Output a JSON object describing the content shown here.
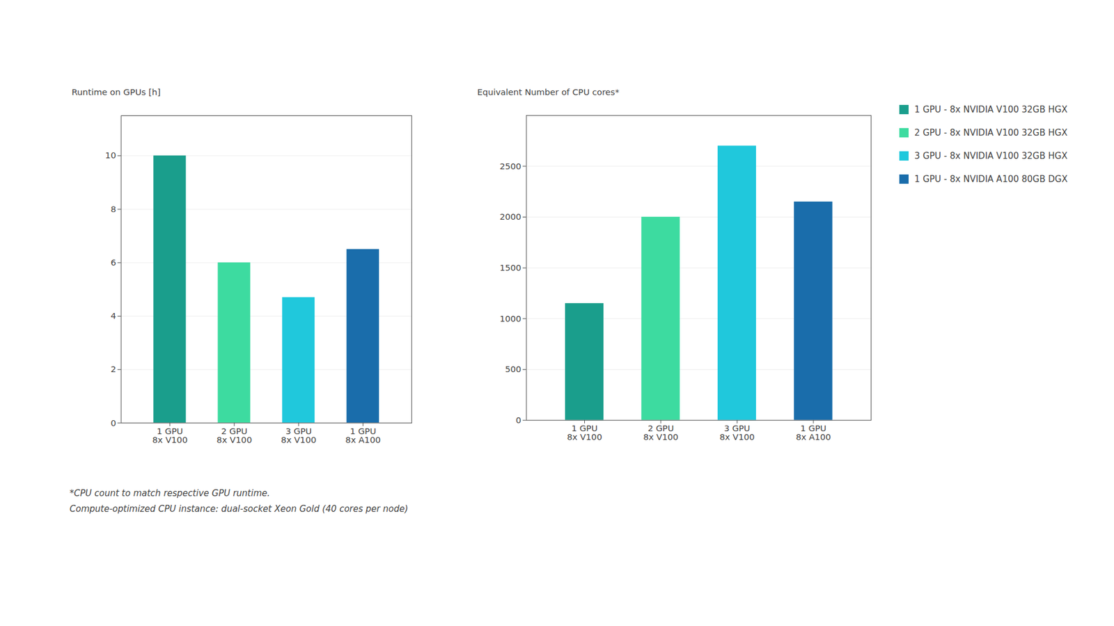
{
  "chart_data": [
    {
      "type": "bar",
      "categories": [
        "1 GPU\n8x V100",
        "2 GPU\n8x V100",
        "3 GPU\n8x V100",
        "1 GPU\n8x A100"
      ],
      "values": [
        10.0,
        6.0,
        4.7,
        6.5
      ],
      "colors": [
        "#1a9e8c",
        "#3ddba0",
        "#20c8dc",
        "#1a6dab"
      ],
      "ylabel": "Runtime on GPUs [h]",
      "ylim": [
        0,
        11.5
      ],
      "yticks": [
        0,
        2,
        4,
        6,
        8,
        10
      ],
      "grid": true
    },
    {
      "type": "bar",
      "categories": [
        "1 GPU\n8x V100",
        "2 GPU\n8x V100",
        "3 GPU\n8x V100",
        "1 GPU\n8x A100"
      ],
      "values": [
        1150,
        2000,
        2700,
        2150
      ],
      "colors": [
        "#1a9e8c",
        "#3ddba0",
        "#20c8dc",
        "#1a6dab"
      ],
      "ylabel": "Equivalent Number of CPU cores*",
      "ylim": [
        0,
        3000
      ],
      "yticks": [
        0,
        500,
        1000,
        1500,
        2000,
        2500
      ],
      "grid": true,
      "legend": "right",
      "legend_labels": [
        "1 GPU - 8x NVIDIA V100 32GB HGX",
        "2 GPU - 8x NVIDIA V100 32GB HGX",
        "3 GPU - 8x NVIDIA V100 32GB HGX",
        "1 GPU - 8x NVIDIA A100 80GB DGX"
      ],
      "annotations": [
        "*CPU count to match respective GPU runtime.",
        "Compute-optimized CPU instance: dual-socket Xeon Gold (40 cores per node)"
      ]
    }
  ]
}
